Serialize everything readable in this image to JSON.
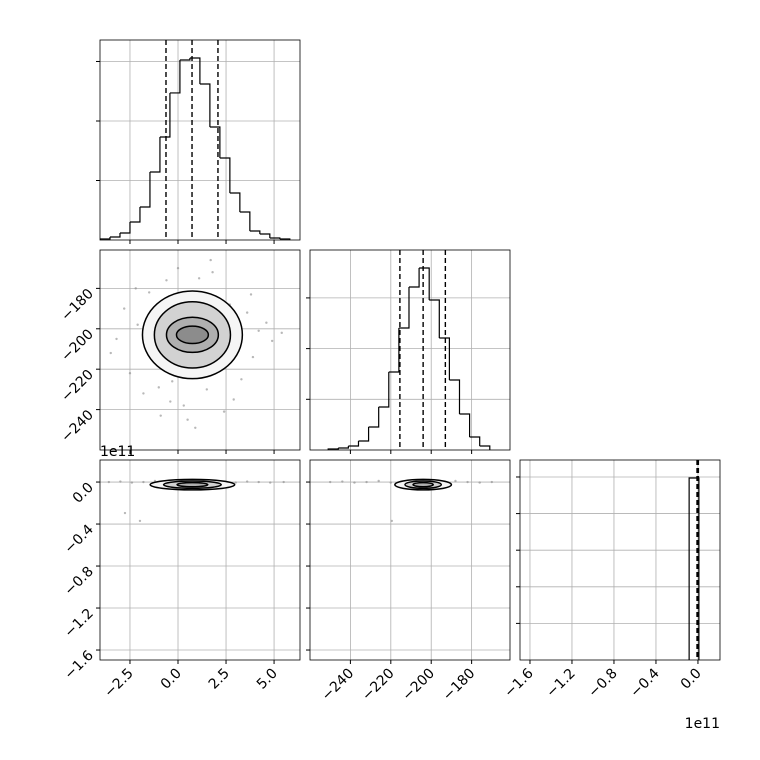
{
  "chart_data": {
    "type": "corner",
    "grid": true,
    "parameters": [
      {
        "lim": [
          -4.06,
          6.35
        ],
        "ticks": [
          {
            "value": -2.5,
            "label": "−2.5"
          },
          {
            "value": 0,
            "label": "0.0"
          },
          {
            "value": 2.5,
            "label": "2.5"
          },
          {
            "value": 5,
            "label": "5.0"
          }
        ],
        "bins": [
          -4.06,
          -3.54,
          -3.02,
          -2.5,
          -1.98,
          -1.46,
          -0.94,
          -0.42,
          0.1,
          0.62,
          1.14,
          1.66,
          2.18,
          2.7,
          3.22,
          3.74,
          4.26,
          4.78,
          5.3,
          5.82
        ],
        "counts": [
          17,
          50,
          118,
          303,
          555,
          1143,
          1731,
          2471,
          3025,
          3059,
          2622,
          1899,
          1378,
          790,
          471,
          151,
          101,
          34,
          17
        ],
        "hist_ylim": [
          0,
          3361
        ],
        "hist_yticks": [
          1000,
          2000,
          3000
        ],
        "quantiles": [
          -0.625,
          0.73,
          2.08
        ]
      },
      {
        "lim": [
          -260,
          -161
        ],
        "ticks": [
          {
            "value": -240,
            "label": "−240"
          },
          {
            "value": -220,
            "label": "−220"
          },
          {
            "value": -200,
            "label": "−200"
          },
          {
            "value": -180,
            "label": "−180"
          }
        ],
        "bins": [
          -251,
          -246,
          -241,
          -236,
          -231,
          -226,
          -221,
          -216,
          -211,
          -206,
          -201,
          -196,
          -191,
          -186,
          -181,
          -176,
          -171
        ],
        "counts": [
          20,
          39,
          79,
          178,
          454,
          848,
          1538,
          2406,
          3215,
          3590,
          2959,
          2209,
          1381,
          710,
          256,
          79
        ],
        "hist_ylim": [
          0,
          3945
        ],
        "hist_yticks": [
          1000,
          2000,
          3000
        ],
        "quantiles": [
          -215.5,
          -204,
          -193
        ]
      },
      {
        "lim": [
          -1.695,
          0.21
        ],
        "ticks": [
          {
            "value": -1.6,
            "label": "−1.6"
          },
          {
            "value": -1.2,
            "label": "−1.2"
          },
          {
            "value": -0.8,
            "label": "−0.8"
          },
          {
            "value": -0.4,
            "label": "−0.4"
          },
          {
            "value": 0,
            "label": "0.0"
          }
        ],
        "offset_text": "1e11",
        "bins": [
          -0.084,
          0.009
        ],
        "counts": [
          4973
        ],
        "hist_ylim": [
          0,
          5464
        ],
        "hist_yticks": [
          1000,
          2000,
          3000,
          4000,
          5000
        ],
        "quantiles": [
          -0.009,
          -0.002,
          0.004
        ]
      }
    ],
    "pairs": [
      [
        {
          "x": [
            -3.2,
            -2.8,
            -2.5,
            -2.1,
            -1.8,
            -1.5,
            -1.2,
            -0.9,
            -0.6,
            -0.3,
            0.0,
            0.3,
            0.6,
            0.9,
            1.2,
            1.5,
            1.8,
            2.1,
            2.4,
            2.7,
            3.0,
            3.3,
            3.6,
            3.9,
            4.2,
            4.6,
            -2.2,
            -1.0,
            0.5,
            1.7,
            2.9,
            3.8,
            -1.6,
            0.2,
            1.1,
            2.3,
            -0.4,
            4.9,
            -3.5,
            5.4
          ],
          "y": [
            -205,
            -190,
            -222,
            -198,
            -232,
            -182,
            -212,
            -243,
            -176,
            -226,
            -170,
            -238,
            -195,
            -249,
            -184,
            -230,
            -172,
            -216,
            -241,
            -188,
            -208,
            -225,
            -192,
            -214,
            -201,
            -197,
            -180,
            -229,
            -245,
            -166,
            -235,
            -183,
            -210,
            -219,
            -175,
            -190,
            -236,
            -206,
            -212,
            -202
          ],
          "center": [
            0.75,
            -203
          ],
          "levels": [
            {
              "rx": 2.6,
              "ry": 21.7
            },
            {
              "rx": 1.98,
              "ry": 16.4
            },
            {
              "rx": 1.35,
              "ry": 8.7
            },
            {
              "rx": 0.83,
              "ry": 4.3
            }
          ]
        }
      ],
      [
        {
          "x": [
            -3.6,
            -3.0,
            -2.4,
            -1.8,
            -1.2,
            -0.6,
            0.0,
            0.6,
            1.2,
            1.8,
            2.4,
            3.0,
            3.6,
            4.2,
            4.8,
            5.5,
            -2.76,
            -1.98
          ],
          "y": [
            0,
            0.005,
            -0.005,
            0,
            0.01,
            -0.01,
            0,
            0.005,
            -0.005,
            0.01,
            0,
            -0.005,
            0.005,
            0,
            -0.005,
            0,
            -0.295,
            -0.37
          ],
          "center": [
            0.75,
            -0.025
          ],
          "levels": [
            {
              "rx": 2.2,
              "ry": 0.05
            },
            {
              "rx": 1.5,
              "ry": 0.035
            },
            {
              "rx": 0.8,
              "ry": 0.02
            }
          ]
        },
        {
          "x": [
            -250,
            -244,
            -238,
            -232,
            -226,
            -220,
            -214,
            -208,
            -200,
            -194,
            -188,
            -182,
            -176,
            -170,
            -219.5
          ],
          "y": [
            0,
            0.005,
            -0.005,
            0,
            0.01,
            -0.005,
            0,
            0.005,
            -0.005,
            0,
            0.01,
            0,
            -0.005,
            0,
            -0.37
          ],
          "center": [
            -204,
            -0.025
          ],
          "levels": [
            {
              "rx": 14,
              "ry": 0.05
            },
            {
              "rx": 9,
              "ry": 0.035
            },
            {
              "rx": 5,
              "ry": 0.02
            }
          ]
        }
      ]
    ]
  }
}
